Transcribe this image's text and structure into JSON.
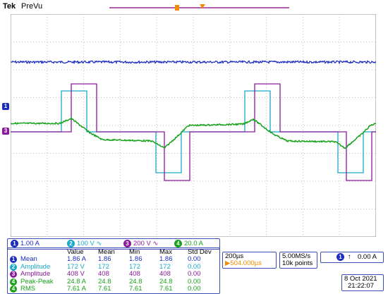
{
  "header": {
    "brand": "Tek",
    "status": "PreVu"
  },
  "markers": {
    "trigger_label": "T",
    "ch1_label": "1",
    "ch2_label": "3"
  },
  "channels": [
    {
      "badge": "1",
      "value": "1.00 A",
      "color": "#1b2cbf"
    },
    {
      "badge": "2",
      "value": "100 V",
      "color": "#1aa8c8"
    },
    {
      "badge": "3",
      "value": "200 V",
      "color": "#8a1a9b"
    },
    {
      "badge": "4",
      "value": "20.0 A",
      "color": "#17a21a"
    }
  ],
  "measurements": {
    "headers": [
      "Value",
      "Mean",
      "Min",
      "Max",
      "Std Dev"
    ],
    "rows": [
      {
        "badge": "1",
        "name": "Mean",
        "value": "1.86 A",
        "mean": "1.86",
        "min": "1.86",
        "max": "1.86",
        "std": "0.00",
        "color": "#1b2cbf"
      },
      {
        "badge": "2",
        "name": "Amplitude",
        "value": "172 V",
        "mean": "172",
        "min": "172",
        "max": "172",
        "std": "0.00",
        "color": "#1aa8c8"
      },
      {
        "badge": "3",
        "name": "Amplitude",
        "value": "408 V",
        "mean": "408",
        "min": "408",
        "max": "408",
        "std": "0.00",
        "color": "#8a1a9b"
      },
      {
        "badge": "4",
        "name": "Peak-Peak",
        "value": "24.8 A",
        "mean": "24.8",
        "min": "24.8",
        "max": "24.8",
        "std": "0.00",
        "color": "#17a21a"
      },
      {
        "badge": "4",
        "name": "RMS",
        "value": "7.61 A",
        "mean": "7.61",
        "min": "7.61",
        "max": "7.61",
        "std": "0.00",
        "color": "#17a21a"
      }
    ]
  },
  "timebase": {
    "scale": "200µs",
    "position": "▶504.000µs"
  },
  "acquisition": {
    "rate": "5.00MS/s",
    "points": "10k points"
  },
  "trigger": {
    "badge": "1",
    "slope": "↑",
    "level": "0.00 A"
  },
  "datetime": {
    "date": "8 Oct  2021",
    "time": "21:22:07"
  }
}
